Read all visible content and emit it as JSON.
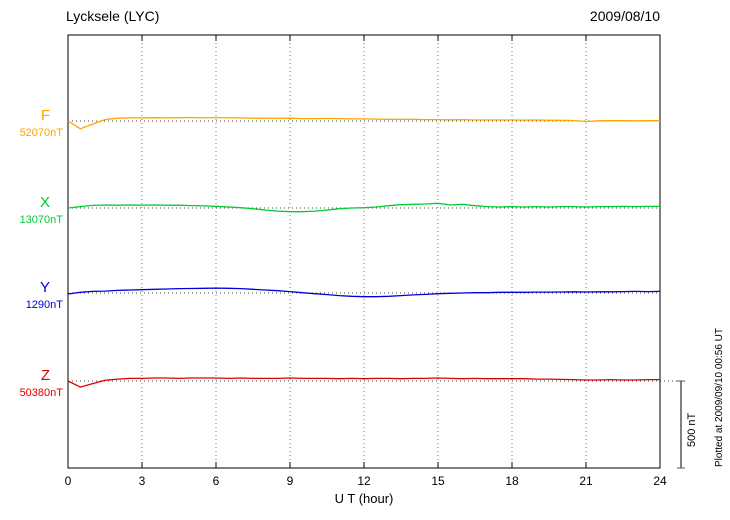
{
  "chart_data": {
    "type": "line",
    "title": "Lycksele (LYC)",
    "date": "2009/08/10",
    "xlabel": "U T (hour)",
    "xlim": [
      0,
      24
    ],
    "x_ticks": [
      0,
      3,
      6,
      9,
      12,
      15,
      18,
      21,
      24
    ],
    "grid": "dotted vertical gridlines every 3 hours; dotted horizontal baseline per trace",
    "legend_position": "left-margin labels",
    "scale_bar": {
      "label": "500 nT",
      "nT": 500
    },
    "plotted_at": "Plotted at 2009/09/10 00:56 UT",
    "x": [
      0,
      0.5,
      1,
      1.5,
      2,
      2.5,
      3,
      3.5,
      4,
      4.5,
      5,
      5.5,
      6,
      6.5,
      7,
      7.5,
      8,
      8.5,
      9,
      9.5,
      10,
      10.5,
      11,
      11.5,
      12,
      12.5,
      13,
      13.5,
      14,
      14.5,
      15,
      15.5,
      16,
      16.5,
      17,
      17.5,
      18,
      18.5,
      19,
      19.5,
      20,
      20.5,
      21,
      21.5,
      22,
      22.5,
      23,
      23.5,
      24
    ],
    "series": [
      {
        "name": "F",
        "baseline_label": "52070nT",
        "baseline_nT": 52070,
        "color": "#FFA500",
        "offsets_nT": [
          0,
          -45,
          -18,
          8,
          16,
          18,
          18,
          19,
          18,
          19,
          20,
          18,
          20,
          18,
          18,
          16,
          16,
          15,
          16,
          14,
          14,
          15,
          14,
          12,
          12,
          11,
          10,
          9,
          10,
          8,
          8,
          7,
          8,
          6,
          6,
          6,
          6,
          5,
          6,
          4,
          4,
          3,
          -3,
          1,
          2,
          2,
          1,
          2,
          2
        ]
      },
      {
        "name": "X",
        "baseline_label": "13070nT",
        "baseline_nT": 13070,
        "color": "#00CC33",
        "offsets_nT": [
          0,
          8,
          15,
          17,
          16,
          17,
          16,
          17,
          16,
          16,
          14,
          12,
          10,
          6,
          2,
          -4,
          -12,
          -18,
          -21,
          -21,
          -18,
          -12,
          -4,
          0,
          2,
          6,
          13,
          19,
          21,
          23,
          27,
          17,
          21,
          13,
          8,
          6,
          8,
          6,
          8,
          6,
          8,
          8,
          6,
          8,
          8,
          9,
          8,
          9,
          9
        ]
      },
      {
        "name": "Y",
        "baseline_label": "1290nT",
        "baseline_nT": 1290,
        "color": "#0000DD",
        "offsets_nT": [
          -6,
          4,
          9,
          11,
          15,
          17,
          19,
          21,
          23,
          25,
          26,
          27,
          28,
          27,
          25,
          21,
          17,
          13,
          8,
          2,
          -4,
          -9,
          -15,
          -19,
          -21,
          -21,
          -19,
          -15,
          -11,
          -8,
          -4,
          -2,
          0,
          2,
          2,
          4,
          4,
          4,
          5,
          5,
          6,
          7,
          6,
          7,
          7,
          8,
          9,
          8,
          9
        ]
      },
      {
        "name": "Z",
        "baseline_label": "50380nT",
        "baseline_nT": 50380,
        "color": "#DD0000",
        "offsets_nT": [
          0,
          -35,
          -15,
          4,
          11,
          15,
          15,
          17,
          17,
          15,
          17,
          17,
          17,
          15,
          17,
          15,
          15,
          15,
          17,
          15,
          15,
          15,
          13,
          15,
          13,
          15,
          15,
          13,
          15,
          15,
          17,
          15,
          13,
          15,
          13,
          13,
          13,
          13,
          11,
          11,
          9,
          8,
          6,
          6,
          8,
          6,
          6,
          8,
          8
        ]
      }
    ]
  }
}
